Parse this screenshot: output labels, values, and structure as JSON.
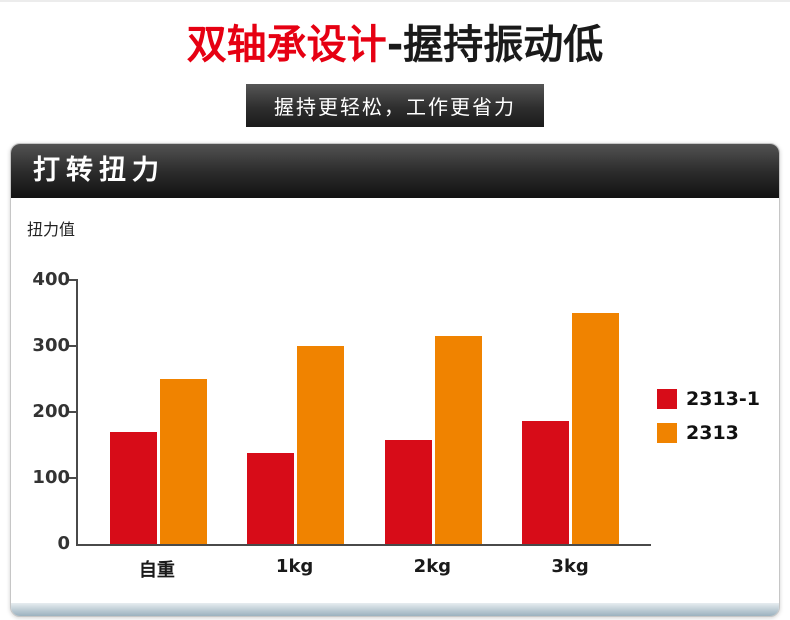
{
  "hero": {
    "title_red": "双轴承设计",
    "title_black": "-握持振动低",
    "subtitle": "握持更轻松，工作更省力"
  },
  "panel": {
    "title": "打转扭力"
  },
  "chart_data": {
    "type": "bar",
    "title": "打转扭力",
    "ylabel": "扭力值",
    "xlabel": "",
    "categories": [
      "自重",
      "1kg",
      "2kg",
      "3kg"
    ],
    "series": [
      {
        "name": "2313-1",
        "color": "#d70c18",
        "values": [
          170,
          138,
          158,
          187
        ]
      },
      {
        "name": "2313",
        "color": "#f08300",
        "values": [
          250,
          300,
          315,
          350
        ]
      }
    ],
    "ylim": [
      0,
      400
    ],
    "yticks": [
      0,
      100,
      200,
      300,
      400
    ],
    "grid": false,
    "legend_position": "right"
  },
  "colors": {
    "accent_red": "#e60012",
    "bar_red": "#d70c18",
    "bar_orange": "#f08300"
  }
}
